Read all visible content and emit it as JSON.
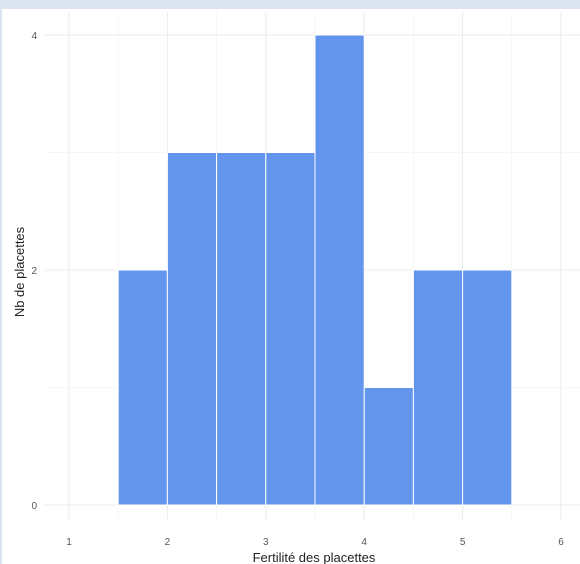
{
  "chart_data": {
    "type": "bar",
    "title": "",
    "xlabel": "Fertilité des placettes",
    "ylabel": "Nb de placettes",
    "bin_width": 0.5,
    "bins": [
      {
        "x_start": 1.5,
        "x_end": 2.0,
        "value": 2
      },
      {
        "x_start": 2.0,
        "x_end": 2.5,
        "value": 3
      },
      {
        "x_start": 2.5,
        "x_end": 3.0,
        "value": 3
      },
      {
        "x_start": 3.0,
        "x_end": 3.5,
        "value": 3
      },
      {
        "x_start": 3.5,
        "x_end": 4.0,
        "value": 4
      },
      {
        "x_start": 4.0,
        "x_end": 4.5,
        "value": 1
      },
      {
        "x_start": 4.5,
        "x_end": 5.0,
        "value": 2
      },
      {
        "x_start": 5.0,
        "x_end": 5.5,
        "value": 2
      }
    ],
    "xlim": [
      0.5,
      6.2
    ],
    "ylim": [
      0,
      4.2
    ],
    "x_ticks": [
      1,
      2,
      3,
      4,
      5,
      6
    ],
    "x_tick_labels": [
      "1",
      "2",
      "3",
      "4",
      "5",
      "6"
    ],
    "y_ticks": [
      0,
      2,
      4
    ],
    "y_tick_labels": [
      "0",
      "2",
      "4"
    ],
    "grid": true,
    "bar_color": "#6495ed",
    "bar_edge_color": "#ffffff",
    "grid_color": "#ebebeb"
  }
}
